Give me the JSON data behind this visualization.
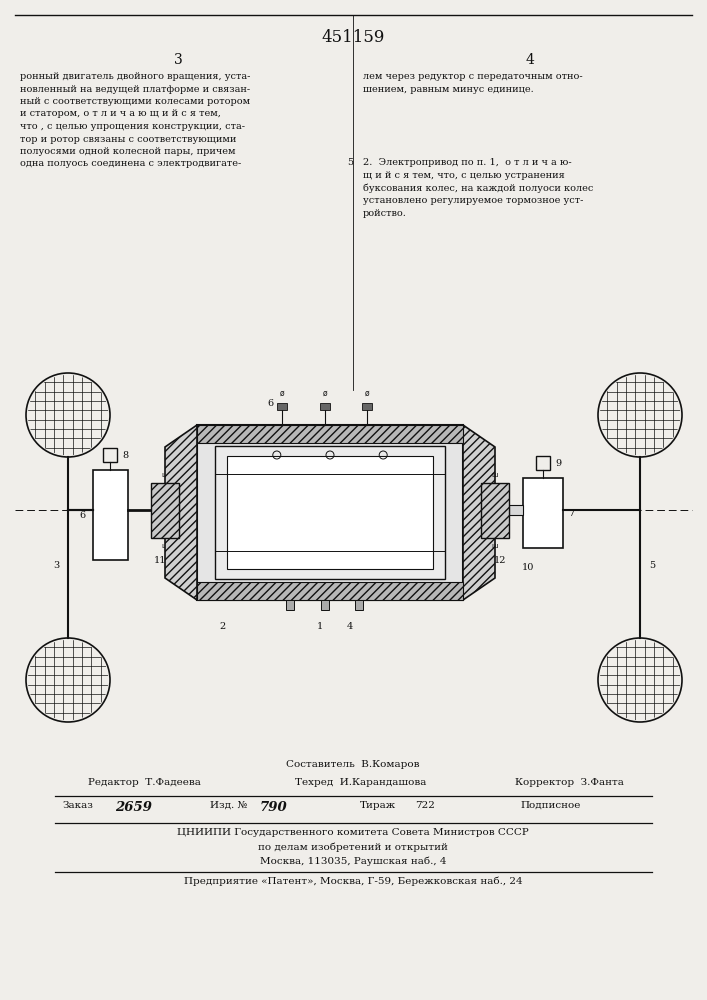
{
  "title_number": "451159",
  "col_left": "3",
  "col_right": "4",
  "text_left": "ронный двигатель двойного вращения, уста-\nновленный на ведущей платформе и связан-\nный с соответствующими колесами ротором\nи статором, о т л и ч а ю щ и й с я тем,\nчто , с целью упрощения конструкции, ста-\nтор и ротор связаны с соответствующими\nполуосями одной колесной пары, причем\nодна полуось соединена с электродвигате-",
  "text_right_1": "лем через редуктор с передаточным отно-\nшением, равным минус единице.",
  "text_right_2": "2.  Электропривод по п. 1,  о т л и ч а ю-\nщ и й с я тем, что, с целью устранения\nбуксования колес, на каждой полуоси колес\nустановлено регулируемое тормозное уст-\nройство.",
  "number_5": "5",
  "footer_compositor": "Составитель  В.Комаров",
  "footer_editor": "Редактор  Т.Фадеева",
  "footer_tech": "Техред  И.Карандашова",
  "footer_corrector": "Корректор  З.Фанта",
  "footer_order_label": "Заказ",
  "footer_order_val": "2659",
  "footer_edition_label": "Изд. №",
  "footer_edition_val": "790",
  "footer_circulation_label": "Тираж",
  "footer_circulation_val": "722",
  "footer_subscription": "Подписное",
  "footer_org1": "ЦНИИПИ Государственного комитета Совета Министров СССР",
  "footer_org2": "по делам изобретений и открытий",
  "footer_org3": "Москва, 113035, Раушская наб., 4",
  "footer_enterprise": "Предприятие «Патент», Москва, Г-59, Бережковская наб., 24",
  "bg_color": "#f0eeea",
  "text_color": "#111111",
  "line_color": "#111111"
}
